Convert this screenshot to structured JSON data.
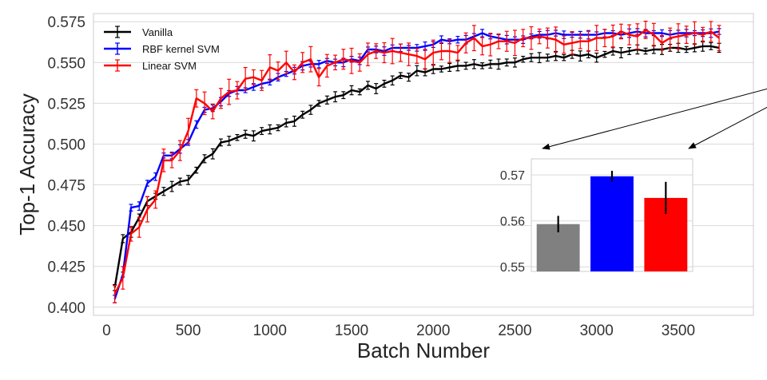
{
  "chart_data": [
    {
      "type": "line",
      "title": "",
      "xlabel": "Batch Number",
      "ylabel": "Top-1 Accuracy",
      "xlim": [
        -80,
        3960
      ],
      "ylim": [
        0.395,
        0.58
      ],
      "xticks": [
        0,
        500,
        1000,
        1500,
        2000,
        2500,
        3000,
        3500
      ],
      "xtick_labels": [
        "0",
        "500",
        "1000",
        "1500",
        "2000",
        "2500",
        "3000",
        "3500"
      ],
      "yticks": [
        0.4,
        0.425,
        0.45,
        0.475,
        0.5,
        0.525,
        0.55,
        0.575
      ],
      "ytick_labels": [
        "0.400",
        "0.425",
        "0.450",
        "0.475",
        "0.500",
        "0.525",
        "0.550",
        "0.575"
      ],
      "grid": true,
      "legend_position": "top-left",
      "x": [
        50,
        100,
        150,
        200,
        250,
        300,
        350,
        400,
        450,
        500,
        550,
        600,
        650,
        700,
        750,
        800,
        850,
        900,
        950,
        1000,
        1050,
        1100,
        1150,
        1200,
        1250,
        1300,
        1350,
        1400,
        1450,
        1500,
        1550,
        1600,
        1650,
        1700,
        1750,
        1800,
        1850,
        1900,
        1950,
        2000,
        2050,
        2100,
        2150,
        2200,
        2250,
        2300,
        2350,
        2400,
        2450,
        2500,
        2550,
        2600,
        2650,
        2700,
        2750,
        2800,
        2850,
        2900,
        2950,
        3000,
        3050,
        3100,
        3150,
        3200,
        3250,
        3300,
        3350,
        3400,
        3450,
        3500,
        3550,
        3600,
        3650,
        3700,
        3750
      ],
      "series": [
        {
          "name": "Vanilla",
          "color": "#000000",
          "values": [
            0.412,
            0.442,
            0.446,
            0.455,
            0.465,
            0.468,
            0.471,
            0.474,
            0.477,
            0.478,
            0.484,
            0.491,
            0.494,
            0.501,
            0.502,
            0.504,
            0.506,
            0.505,
            0.508,
            0.509,
            0.51,
            0.513,
            0.514,
            0.518,
            0.521,
            0.525,
            0.527,
            0.529,
            0.53,
            0.533,
            0.532,
            0.536,
            0.534,
            0.537,
            0.539,
            0.542,
            0.541,
            0.545,
            0.544,
            0.546,
            0.546,
            0.547,
            0.548,
            0.548,
            0.549,
            0.548,
            0.549,
            0.549,
            0.55,
            0.55,
            0.552,
            0.553,
            0.553,
            0.553,
            0.554,
            0.553,
            0.555,
            0.554,
            0.555,
            0.553,
            0.555,
            0.557,
            0.556,
            0.557,
            0.558,
            0.557,
            0.558,
            0.558,
            0.559,
            0.559,
            0.558,
            0.559,
            0.56,
            0.56,
            0.559
          ],
          "error": 0.0018
        },
        {
          "name": "RBF kernel SVM",
          "color": "#0000ff",
          "values": [
            0.405,
            0.42,
            0.461,
            0.462,
            0.476,
            0.48,
            0.493,
            0.493,
            0.497,
            0.501,
            0.512,
            0.521,
            0.522,
            0.526,
            0.531,
            0.533,
            0.533,
            0.535,
            0.537,
            0.538,
            0.541,
            0.543,
            0.545,
            0.548,
            0.549,
            0.549,
            0.551,
            0.55,
            0.55,
            0.552,
            0.551,
            0.558,
            0.558,
            0.557,
            0.559,
            0.559,
            0.559,
            0.559,
            0.56,
            0.561,
            0.564,
            0.563,
            0.564,
            0.564,
            0.566,
            0.568,
            0.566,
            0.565,
            0.564,
            0.564,
            0.564,
            0.566,
            0.567,
            0.567,
            0.568,
            0.567,
            0.567,
            0.567,
            0.567,
            0.567,
            0.568,
            0.568,
            0.567,
            0.568,
            0.569,
            0.568,
            0.568,
            0.568,
            0.567,
            0.568,
            0.568,
            0.568,
            0.568,
            0.568,
            0.569
          ],
          "error": 0.0015
        },
        {
          "name": "Linear SVM",
          "color": "#ff0000",
          "values": [
            0.408,
            0.418,
            0.445,
            0.449,
            0.46,
            0.466,
            0.49,
            0.49,
            0.496,
            0.508,
            0.528,
            0.525,
            0.52,
            0.528,
            0.532,
            0.533,
            0.54,
            0.541,
            0.539,
            0.547,
            0.545,
            0.55,
            0.544,
            0.55,
            0.552,
            0.541,
            0.548,
            0.55,
            0.552,
            0.551,
            0.55,
            0.555,
            0.557,
            0.556,
            0.557,
            0.556,
            0.555,
            0.554,
            0.552,
            0.556,
            0.557,
            0.557,
            0.556,
            0.562,
            0.565,
            0.56,
            0.561,
            0.563,
            0.563,
            0.562,
            0.565,
            0.565,
            0.566,
            0.565,
            0.564,
            0.561,
            0.562,
            0.563,
            0.563,
            0.565,
            0.565,
            0.566,
            0.569,
            0.567,
            0.566,
            0.57,
            0.567,
            0.562,
            0.565,
            0.566,
            0.567,
            0.568,
            0.567,
            0.569,
            0.565
          ],
          "error": 0.0045
        }
      ],
      "annotation": "arrows from the end of the curves to the inset bar chart"
    },
    {
      "type": "bar",
      "title": "",
      "xlabel": "",
      "ylabel": "",
      "ylim": [
        0.549,
        0.5735
      ],
      "yticks": [
        0.55,
        0.56,
        0.57
      ],
      "ytick_labels": [
        "0.55",
        "0.56",
        "0.57"
      ],
      "grid": true,
      "categories": [
        "Vanilla",
        "RBF kernel SVM",
        "Linear SVM"
      ],
      "values": [
        0.5593,
        0.5697,
        0.565
      ],
      "errors": [
        0.0018,
        0.0012,
        0.0035
      ],
      "colors": [
        "#808080",
        "#0000ff",
        "#ff0000"
      ]
    }
  ]
}
